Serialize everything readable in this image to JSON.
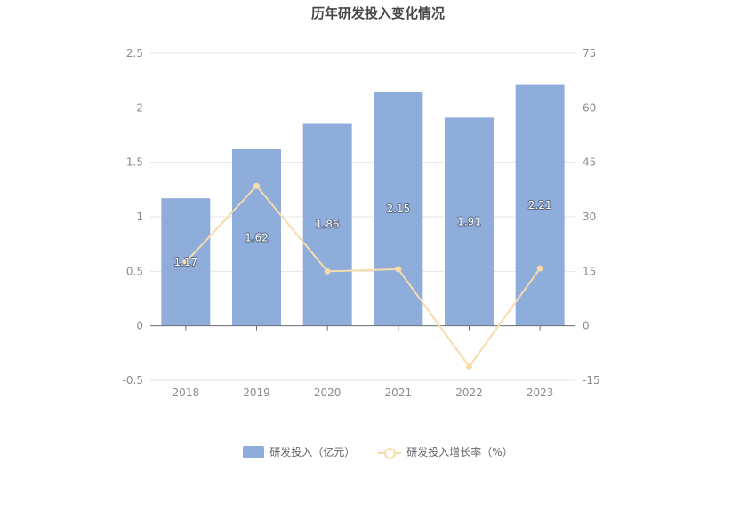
{
  "chart_data": {
    "type": "bar",
    "title": "历年研发投入变化情况",
    "categories": [
      "2018",
      "2019",
      "2020",
      "2021",
      "2022",
      "2023"
    ],
    "series": [
      {
        "name": "研发投入（亿元）",
        "type": "bar",
        "axis": "left",
        "values": [
          1.17,
          1.62,
          1.86,
          2.15,
          1.91,
          2.21
        ],
        "color": "#8eaddb"
      },
      {
        "name": "研发投入增长率（%）",
        "type": "line",
        "axis": "right",
        "values": [
          17.5,
          38.5,
          15.0,
          15.6,
          -11.2,
          15.8
        ],
        "color": "#f7dbab"
      }
    ],
    "y_left": {
      "ticks": [
        "2.5",
        "2",
        "1.5",
        "1",
        "0.5",
        "0",
        "-0.5"
      ],
      "range": [
        -0.5,
        2.5
      ]
    },
    "y_right": {
      "ticks": [
        "75",
        "60",
        "45",
        "30",
        "15",
        "0",
        "-15"
      ],
      "range": [
        -15,
        75
      ]
    },
    "data_labels": [
      "1.17",
      "1.62",
      "1.86",
      "2.15",
      "1.91",
      "2.21"
    ],
    "grid": true,
    "legend_position": "bottom"
  }
}
